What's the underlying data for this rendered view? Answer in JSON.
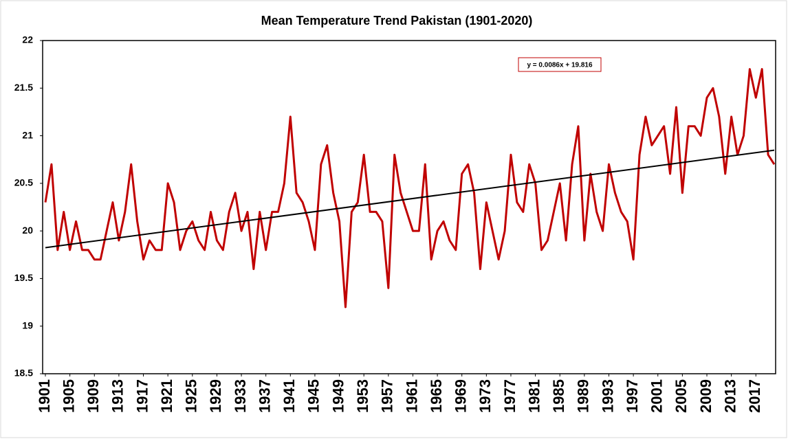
{
  "chart_data": {
    "type": "line",
    "title": "Mean Temperature Trend Pakistan (1901-2020)",
    "x": [
      1901,
      1902,
      1903,
      1904,
      1905,
      1906,
      1907,
      1908,
      1909,
      1910,
      1911,
      1912,
      1913,
      1914,
      1915,
      1916,
      1917,
      1918,
      1919,
      1920,
      1921,
      1922,
      1923,
      1924,
      1925,
      1926,
      1927,
      1928,
      1929,
      1930,
      1931,
      1932,
      1933,
      1934,
      1935,
      1936,
      1937,
      1938,
      1939,
      1940,
      1941,
      1942,
      1943,
      1944,
      1945,
      1946,
      1947,
      1948,
      1949,
      1950,
      1951,
      1952,
      1953,
      1954,
      1955,
      1956,
      1957,
      1958,
      1959,
      1960,
      1961,
      1962,
      1963,
      1964,
      1965,
      1966,
      1967,
      1968,
      1969,
      1970,
      1971,
      1972,
      1973,
      1974,
      1975,
      1976,
      1977,
      1978,
      1979,
      1980,
      1981,
      1982,
      1983,
      1984,
      1985,
      1986,
      1987,
      1988,
      1989,
      1990,
      1991,
      1992,
      1993,
      1994,
      1995,
      1996,
      1997,
      1998,
      1999,
      2000,
      2001,
      2002,
      2003,
      2004,
      2005,
      2006,
      2007,
      2008,
      2009,
      2010,
      2011,
      2012,
      2013,
      2014,
      2015,
      2016,
      2017,
      2018,
      2019,
      2020
    ],
    "values": [
      20.3,
      20.7,
      19.8,
      20.2,
      19.8,
      20.1,
      19.8,
      19.8,
      19.7,
      19.7,
      20.0,
      20.3,
      19.9,
      20.2,
      20.7,
      20.1,
      19.7,
      19.9,
      19.8,
      19.8,
      20.5,
      20.3,
      19.8,
      20.0,
      20.1,
      19.9,
      19.8,
      20.2,
      19.9,
      19.8,
      20.2,
      20.4,
      20.0,
      20.2,
      19.6,
      20.2,
      19.8,
      20.2,
      20.2,
      20.5,
      21.2,
      20.4,
      20.3,
      20.1,
      19.8,
      20.7,
      20.9,
      20.4,
      20.1,
      19.2,
      20.2,
      20.3,
      20.8,
      20.2,
      20.2,
      20.1,
      19.4,
      20.8,
      20.4,
      20.2,
      20.0,
      20.0,
      20.7,
      19.7,
      20.0,
      20.1,
      19.9,
      19.8,
      20.6,
      20.7,
      20.4,
      19.6,
      20.3,
      20.0,
      19.7,
      20.0,
      20.8,
      20.3,
      20.2,
      20.7,
      20.5,
      19.8,
      19.9,
      20.2,
      20.5,
      19.9,
      20.7,
      21.1,
      19.9,
      20.6,
      20.2,
      20.0,
      20.7,
      20.4,
      20.2,
      20.1,
      19.7,
      20.8,
      21.2,
      20.9,
      21.0,
      21.1,
      20.6,
      21.3,
      20.4,
      21.1,
      21.1,
      21.0,
      21.4,
      21.5,
      21.2,
      20.6,
      21.2,
      20.8,
      21.0,
      21.7,
      21.4,
      21.7,
      20.8,
      20.7
    ],
    "color": "#c00000",
    "xlim": [
      1901,
      2020
    ],
    "xticks": [
      1901,
      1905,
      1909,
      1913,
      1917,
      1921,
      1925,
      1929,
      1933,
      1937,
      1941,
      1945,
      1949,
      1953,
      1957,
      1961,
      1965,
      1969,
      1973,
      1977,
      1981,
      1985,
      1989,
      1993,
      1997,
      2001,
      2005,
      2009,
      2013,
      2017
    ],
    "ylim": [
      18.5,
      22
    ],
    "yticks": [
      18.5,
      19,
      19.5,
      20,
      20.5,
      21,
      21.5,
      22
    ],
    "trendline": {
      "label": "y = 0.0086x + 19.816",
      "slope": 0.0086,
      "intercept": 19.816,
      "color": "#000000"
    }
  }
}
